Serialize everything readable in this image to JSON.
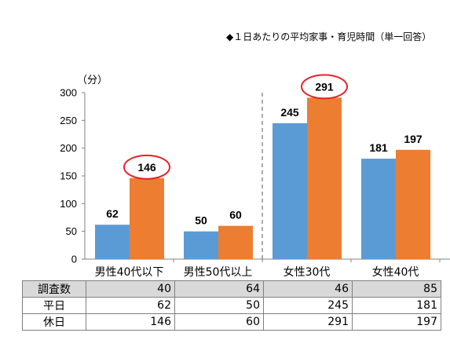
{
  "caption": "◆１日あたりの平均家事・育児時間（単一回答）",
  "chart_data": {
    "type": "bar",
    "ylabel": "（分）",
    "ylim": [
      0,
      300
    ],
    "yticks": [
      0,
      50,
      100,
      150,
      200,
      250,
      300
    ],
    "categories": [
      "男性40代以下",
      "男性50代以上",
      "女性30代",
      "女性40代"
    ],
    "series": [
      {
        "key": "weekday",
        "values": [
          62,
          50,
          245,
          181
        ],
        "color": "#5b9bd5"
      },
      {
        "key": "holiday",
        "values": [
          146,
          60,
          291,
          197
        ],
        "color": "#ed7d31"
      }
    ],
    "highlighted": [
      [
        1,
        0
      ],
      [
        1,
        2
      ]
    ],
    "highlight_color": "#e3242b",
    "divider_after_category": 1,
    "grid": false
  },
  "table": {
    "rows": [
      {
        "label": "調査数",
        "values": [
          "40",
          "64",
          "46",
          "85"
        ]
      },
      {
        "label": "平日",
        "values": [
          "62",
          "50",
          "245",
          "181"
        ]
      },
      {
        "label": "休日",
        "values": [
          "146",
          "60",
          "291",
          "197"
        ]
      }
    ]
  }
}
